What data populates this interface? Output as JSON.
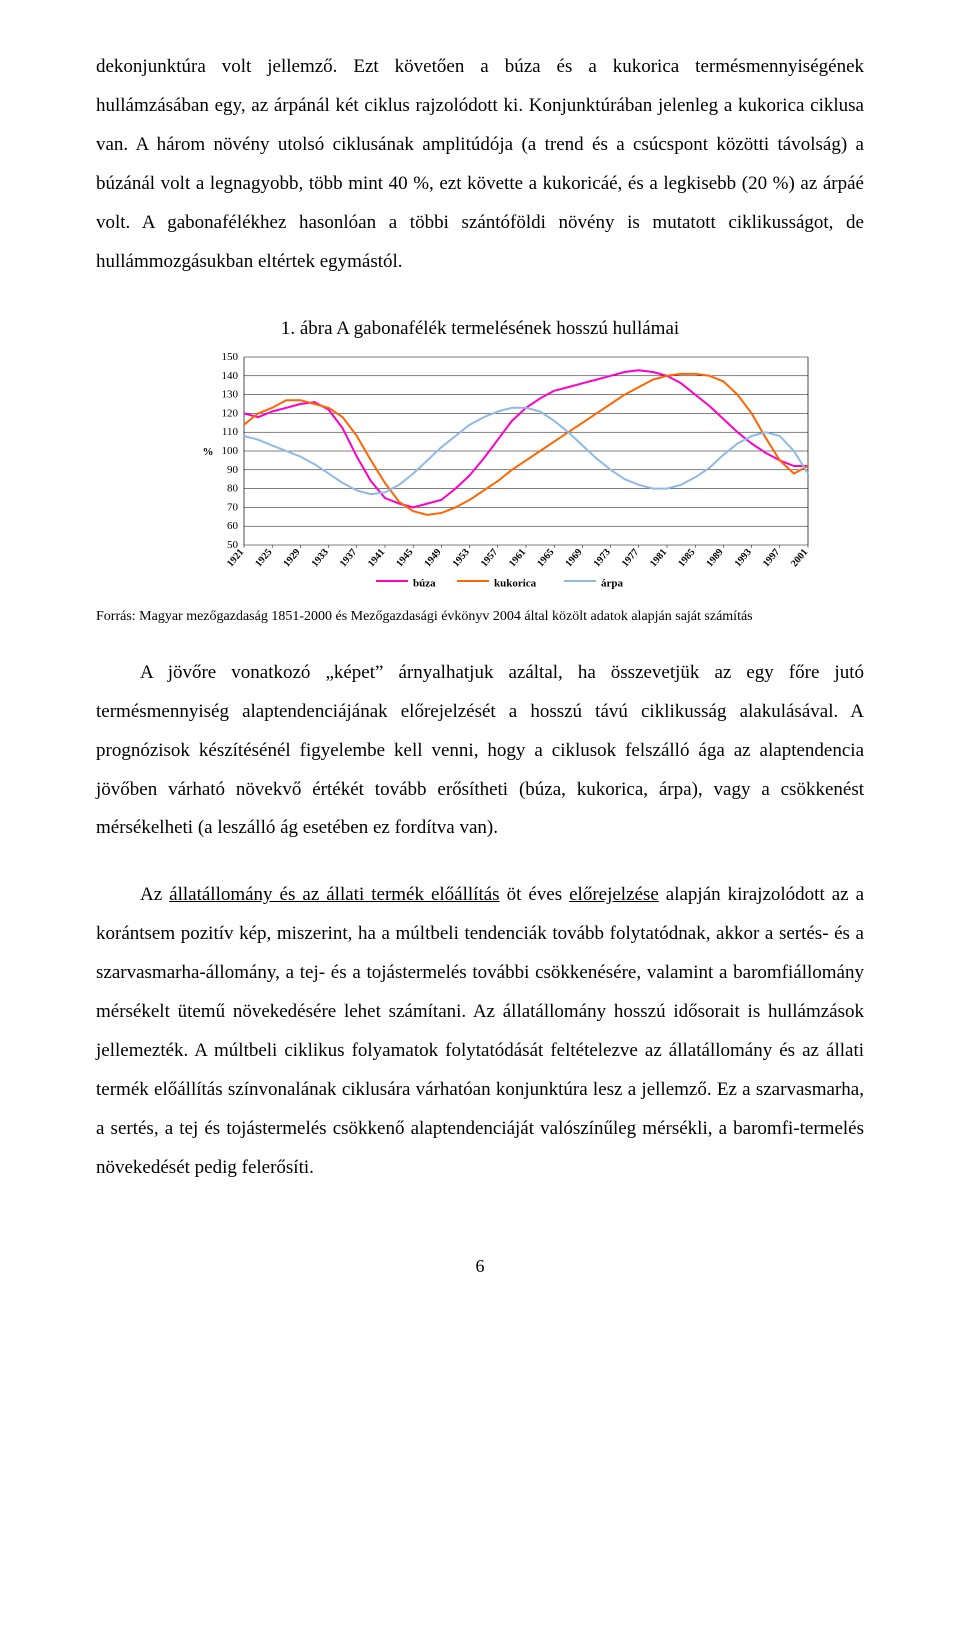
{
  "para1": "dekonjunktúra volt jellemző. Ezt követően a búza és a kukorica termésmennyiségének hullámzásában egy, az árpánál két ciklus rajzolódott ki. Konjunktúrában jelenleg a kukorica ciklusa van. A három növény utolsó ciklusának amplitúdója (a trend és a csúcspont közötti távolság) a búzánál volt a legnagyobb, több mint 40 %, ezt követte a kukoricáé, és a legkisebb (20 %) az árpáé volt. A gabonafélékhez hasonlóan a többi szántóföldi növény is mutatott ciklikusságot, de hullámmozgásukban eltértek egymástól.",
  "chart": {
    "type": "line",
    "title": "1. ábra  A gabonafélék termelésének hosszú hullámai",
    "caption": "Forrás: Magyar mezőgazdaság 1851-2000 és Mezőgazdasági évkönyv 2004 által közölt adatok alapján saját számítás",
    "ylabel": "%",
    "ylim": [
      50,
      150
    ],
    "ytick_step": 10,
    "yticks": [
      50,
      60,
      70,
      80,
      90,
      100,
      110,
      120,
      130,
      140,
      150
    ],
    "xlabels": [
      "1921",
      "1925",
      "1929",
      "1933",
      "1937",
      "1941",
      "1945",
      "1949",
      "1953",
      "1957",
      "1961",
      "1965",
      "1969",
      "1973",
      "1977",
      "1981",
      "1985",
      "1989",
      "1993",
      "1997",
      "2001"
    ],
    "background_color": "#ffffff",
    "grid_color": "#000",
    "line_width": 2,
    "series": [
      {
        "name": "búza",
        "color": "#ff00c8",
        "values": [
          120,
          118,
          121,
          123,
          125,
          126,
          122,
          112,
          97,
          84,
          75,
          72,
          70,
          72,
          74,
          80,
          87,
          96,
          106,
          116,
          123,
          128,
          132,
          134,
          136,
          138,
          140,
          142,
          143,
          142,
          140,
          136,
          130,
          124,
          117,
          110,
          104,
          99,
          95,
          92,
          92
        ]
      },
      {
        "name": "kukorica",
        "color": "#ff6600",
        "values": [
          114,
          120,
          123,
          127,
          127,
          125,
          123,
          118,
          108,
          95,
          83,
          73,
          68,
          66,
          67,
          70,
          74,
          79,
          84,
          90,
          95,
          100,
          105,
          110,
          115,
          120,
          125,
          130,
          134,
          138,
          140,
          141,
          141,
          140,
          137,
          130,
          120,
          107,
          95,
          88,
          92
        ]
      },
      {
        "name": "árpa",
        "color": "#8fb9e6",
        "values": [
          108,
          106,
          103,
          100,
          97,
          93,
          88,
          83,
          79,
          77,
          78,
          82,
          88,
          95,
          102,
          108,
          114,
          118,
          121,
          123,
          123,
          121,
          116,
          110,
          103,
          96,
          90,
          85,
          82,
          80,
          80,
          82,
          86,
          91,
          98,
          104,
          108,
          110,
          108,
          100,
          88
        ]
      }
    ],
    "legend": [
      "búza",
      "kukorica",
      "árpa"
    ],
    "legend_colors": [
      "#ff00c8",
      "#ff6600",
      "#8fb9e6"
    ]
  },
  "para2_a": "A jövőre vonatkozó „képet” árnyalhatjuk azáltal, ha összevetjük az egy főre jutó termésmennyiség alaptendenciájának előrejelzését a hosszú távú ciklikusság alakulásával. A prognózisok készítésénél figyelembe kell venni, hogy a ciklusok felszálló ága az alaptendencia jövőben várható növekvő értékét tovább erősítheti (búza, kukorica, árpa), vagy a csökkenést mérsékelheti (a leszálló ág esetében ez fordítva van).",
  "para3_a": "Az ",
  "para3_u1": "állatállomány és az állati termék előállítás",
  "para3_b": " öt éves ",
  "para3_u2": "előrejelzése",
  "para3_c": " alapján kirajzolódott az a korántsem pozitív kép, miszerint, ha a múltbeli tendenciák tovább folytatódnak, akkor a sertés- és a szarvasmarha-állomány, a tej- és a tojástermelés további csökkenésére, valamint a baromfiállomány mérsékelt ütemű növekedésére lehet számítani. Az állatállomány hosszú idősorait is hullámzások jellemezték. A múltbeli ciklikus folyamatok folytatódását feltételezve az állatállomány és az állati termék előállítás színvonalának ciklusára várhatóan konjunktúra lesz a jellemző. Ez a szarvasmarha, a sertés, a tej és tojástermelés csökkenő alaptendenciáját valószínűleg mérsékli, a baromfi-termelés növekedését pedig felerősíti.",
  "pagenum": "6"
}
